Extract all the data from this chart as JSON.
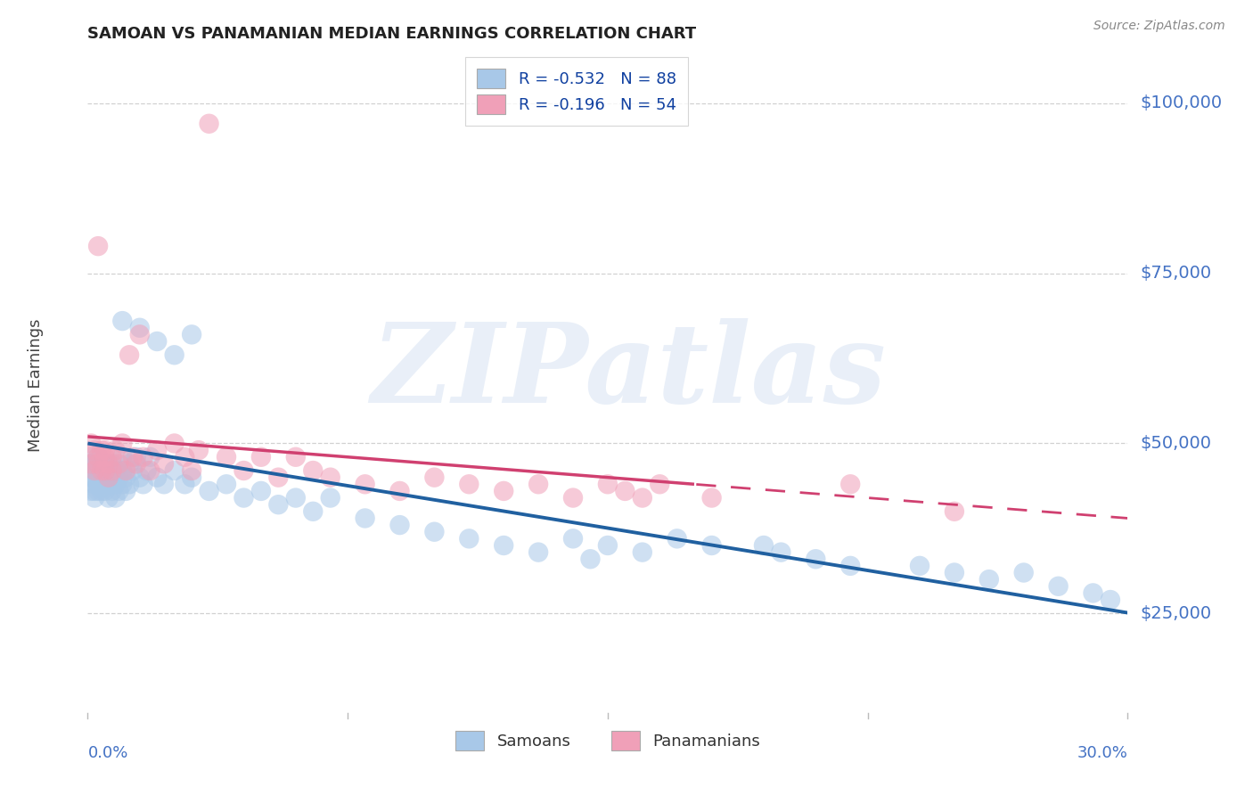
{
  "title": "SAMOAN VS PANAMANIAN MEDIAN EARNINGS CORRELATION CHART",
  "source": "Source: ZipAtlas.com",
  "ylabel": "Median Earnings",
  "y_tick_labels": [
    "$25,000",
    "$50,000",
    "$75,000",
    "$100,000"
  ],
  "y_tick_values": [
    25000,
    50000,
    75000,
    100000
  ],
  "y_min": 10000,
  "y_max": 107000,
  "x_min": 0.0,
  "x_max": 0.3,
  "legend_line1": "R = -0.532   N = 88",
  "legend_line2": "R = -0.196   N = 54",
  "legend_label1": "Samoans",
  "legend_label2": "Panamanians",
  "blue_color": "#A8C8E8",
  "pink_color": "#F0A0B8",
  "blue_line_color": "#2060A0",
  "pink_line_color": "#D04070",
  "watermark_text": "ZIPatlas",
  "title_fontsize": 13,
  "source_fontsize": 10,
  "background_color": "#FFFFFF",
  "grid_color": "#CCCCCC",
  "axis_tick_color": "#4472C4",
  "blue_intercept": 50000,
  "blue_slope": -83000,
  "pink_intercept": 51000,
  "pink_slope": -40000,
  "pink_line_solid_end": 0.175,
  "samoan_x": [
    0.001,
    0.001,
    0.001,
    0.001,
    0.002,
    0.002,
    0.002,
    0.002,
    0.002,
    0.002,
    0.003,
    0.003,
    0.003,
    0.003,
    0.003,
    0.004,
    0.004,
    0.004,
    0.004,
    0.005,
    0.005,
    0.005,
    0.005,
    0.006,
    0.006,
    0.006,
    0.007,
    0.007,
    0.007,
    0.008,
    0.008,
    0.008,
    0.009,
    0.009,
    0.01,
    0.01,
    0.01,
    0.011,
    0.011,
    0.012,
    0.012,
    0.013,
    0.014,
    0.015,
    0.016,
    0.017,
    0.018,
    0.02,
    0.022,
    0.025,
    0.028,
    0.03,
    0.035,
    0.04,
    0.045,
    0.05,
    0.055,
    0.06,
    0.065,
    0.07,
    0.08,
    0.09,
    0.1,
    0.11,
    0.12,
    0.13,
    0.14,
    0.15,
    0.16,
    0.17,
    0.18,
    0.2,
    0.21,
    0.22,
    0.24,
    0.25,
    0.26,
    0.27,
    0.28,
    0.29,
    0.295,
    0.145,
    0.195,
    0.03,
    0.025,
    0.02,
    0.015,
    0.01
  ],
  "samoan_y": [
    47000,
    45000,
    43000,
    48000,
    46000,
    44000,
    47000,
    43000,
    45000,
    42000,
    46000,
    48000,
    44000,
    43000,
    45000,
    47000,
    44000,
    46000,
    43000,
    45000,
    47000,
    43000,
    46000,
    44000,
    46000,
    42000,
    45000,
    47000,
    43000,
    46000,
    44000,
    42000,
    45000,
    43000,
    46000,
    44000,
    48000,
    45000,
    43000,
    47000,
    44000,
    46000,
    48000,
    45000,
    44000,
    46000,
    48000,
    45000,
    44000,
    46000,
    44000,
    45000,
    43000,
    44000,
    42000,
    43000,
    41000,
    42000,
    40000,
    42000,
    39000,
    38000,
    37000,
    36000,
    35000,
    34000,
    36000,
    35000,
    34000,
    36000,
    35000,
    34000,
    33000,
    32000,
    32000,
    31000,
    30000,
    31000,
    29000,
    28000,
    27000,
    33000,
    35000,
    66000,
    63000,
    65000,
    67000,
    68000
  ],
  "panamanian_x": [
    0.001,
    0.001,
    0.002,
    0.002,
    0.003,
    0.003,
    0.003,
    0.004,
    0.004,
    0.005,
    0.005,
    0.005,
    0.006,
    0.006,
    0.007,
    0.007,
    0.008,
    0.009,
    0.01,
    0.011,
    0.012,
    0.013,
    0.014,
    0.015,
    0.016,
    0.018,
    0.02,
    0.022,
    0.025,
    0.028,
    0.03,
    0.032,
    0.035,
    0.04,
    0.045,
    0.05,
    0.055,
    0.06,
    0.065,
    0.07,
    0.08,
    0.09,
    0.1,
    0.11,
    0.12,
    0.13,
    0.14,
    0.15,
    0.155,
    0.16,
    0.165,
    0.18,
    0.22,
    0.25
  ],
  "panamanian_y": [
    50000,
    47000,
    49000,
    46000,
    48000,
    47000,
    79000,
    49000,
    46000,
    48000,
    46000,
    49000,
    47000,
    45000,
    48000,
    46000,
    49000,
    47000,
    50000,
    46000,
    63000,
    48000,
    47000,
    66000,
    48000,
    46000,
    49000,
    47000,
    50000,
    48000,
    46000,
    49000,
    97000,
    48000,
    46000,
    48000,
    45000,
    48000,
    46000,
    45000,
    44000,
    43000,
    45000,
    44000,
    43000,
    44000,
    42000,
    44000,
    43000,
    42000,
    44000,
    42000,
    44000,
    40000
  ]
}
